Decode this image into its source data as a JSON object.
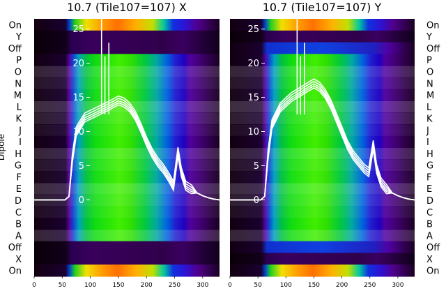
{
  "chart_data": [
    {
      "type": "heatmap",
      "title": "10.7 (Tile107=107) X",
      "ylabel": "Dipole",
      "row_labels": [
        "On",
        "X",
        "Off",
        "A",
        "B",
        "C",
        "D",
        "E",
        "F",
        "G",
        "H",
        "I",
        "J",
        "K",
        "L",
        "M",
        "N",
        "O",
        "P",
        "Off",
        "Y",
        "On"
      ],
      "show_row_labels_left": true,
      "x_ticks": [
        0,
        50,
        100,
        150,
        200,
        250,
        300
      ],
      "xlim": [
        0,
        330
      ],
      "overlay_ticks": [
        0,
        5,
        10,
        15,
        20,
        25
      ],
      "overlay_ylim": [
        -11.2,
        26.5
      ],
      "bandpass": {
        "x": [
          0,
          55,
          62,
          68,
          75,
          90,
          110,
          130,
          150,
          160,
          170,
          180,
          190,
          200,
          210,
          220,
          230,
          240,
          248,
          256,
          262,
          270,
          280,
          290,
          300,
          310,
          320,
          330
        ],
        "y": [
          0,
          0,
          0.5,
          6,
          10,
          12,
          12.8,
          13.6,
          14.5,
          14.2,
          13.5,
          12.3,
          10.5,
          8.5,
          6.8,
          5.5,
          4.5,
          3.2,
          2,
          7,
          4,
          2,
          1.5,
          1,
          0.6,
          0.3,
          0.1,
          0
        ]
      }
    },
    {
      "type": "heatmap",
      "title": "10.7 (Tile107=107) Y",
      "row_labels": [
        "On",
        "X",
        "Off",
        "A",
        "B",
        "C",
        "D",
        "E",
        "F",
        "G",
        "H",
        "I",
        "J",
        "K",
        "L",
        "M",
        "N",
        "O",
        "P",
        "Off",
        "Y",
        "On"
      ],
      "show_row_labels_left": false,
      "x_ticks": [
        0,
        50,
        100,
        150,
        200,
        250,
        300
      ],
      "xlim": [
        0,
        330
      ],
      "overlay_ticks": [
        0,
        5,
        10,
        15,
        20,
        25
      ],
      "overlay_ylim": [
        -11.2,
        26.5
      ],
      "bandpass": {
        "x": [
          0,
          55,
          62,
          68,
          75,
          90,
          110,
          130,
          150,
          160,
          170,
          180,
          190,
          200,
          210,
          220,
          230,
          240,
          248,
          256,
          262,
          270,
          280,
          290,
          300,
          310,
          320,
          330
        ],
        "y": [
          0,
          0,
          0.5,
          6.5,
          11,
          13.5,
          15,
          16,
          17,
          16.5,
          15.5,
          14,
          12,
          10,
          8,
          6.5,
          5.5,
          4.5,
          4,
          8,
          4.5,
          2.5,
          1.5,
          1,
          0.6,
          0.3,
          0.1,
          0
        ]
      }
    }
  ]
}
